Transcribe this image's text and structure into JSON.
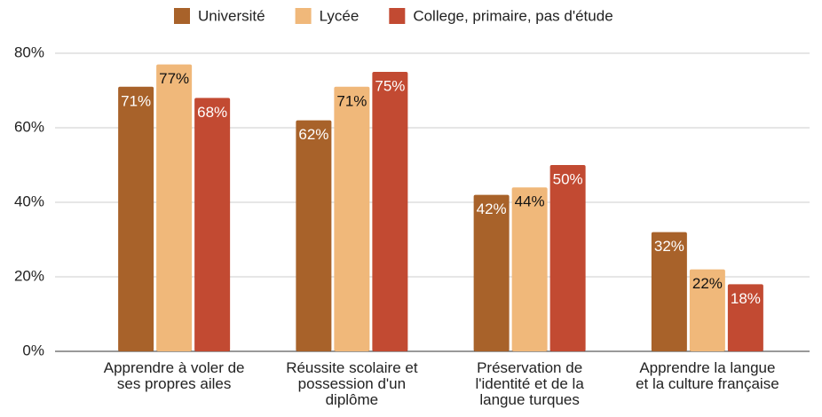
{
  "chart_data": {
    "type": "bar",
    "categories": [
      [
        "Apprendre à voler de",
        "ses propres ailes"
      ],
      [
        "Réussite scolaire et",
        "possession d'un",
        "diplôme"
      ],
      [
        "Préservation de",
        "l'identité et de la",
        "langue turques"
      ],
      [
        "Apprendre la langue",
        "et la culture française"
      ]
    ],
    "series": [
      {
        "name": "Université",
        "color": "#a8622a",
        "values": [
          71,
          62,
          42,
          32
        ],
        "value_labels": [
          "71%",
          "62%",
          "42%",
          "32%"
        ]
      },
      {
        "name": "Lycée",
        "color": "#f0b87a",
        "values": [
          77,
          71,
          44,
          22
        ],
        "value_labels": [
          "77%",
          "71%",
          "44%",
          "22%"
        ]
      },
      {
        "name": "College, primaire, pas d'étude",
        "color": "#c24a32",
        "values": [
          68,
          75,
          50,
          18
        ],
        "value_labels": [
          "68%",
          "75%",
          "50%",
          "18%"
        ]
      }
    ],
    "ylim": [
      0,
      80
    ],
    "yticks": [
      {
        "value": 0,
        "label": "0%"
      },
      {
        "value": 20,
        "label": "20%"
      },
      {
        "value": 40,
        "label": "40%"
      },
      {
        "value": 60,
        "label": "60%"
      },
      {
        "value": 80,
        "label": "80%"
      }
    ],
    "grid": true,
    "legend": "top"
  }
}
